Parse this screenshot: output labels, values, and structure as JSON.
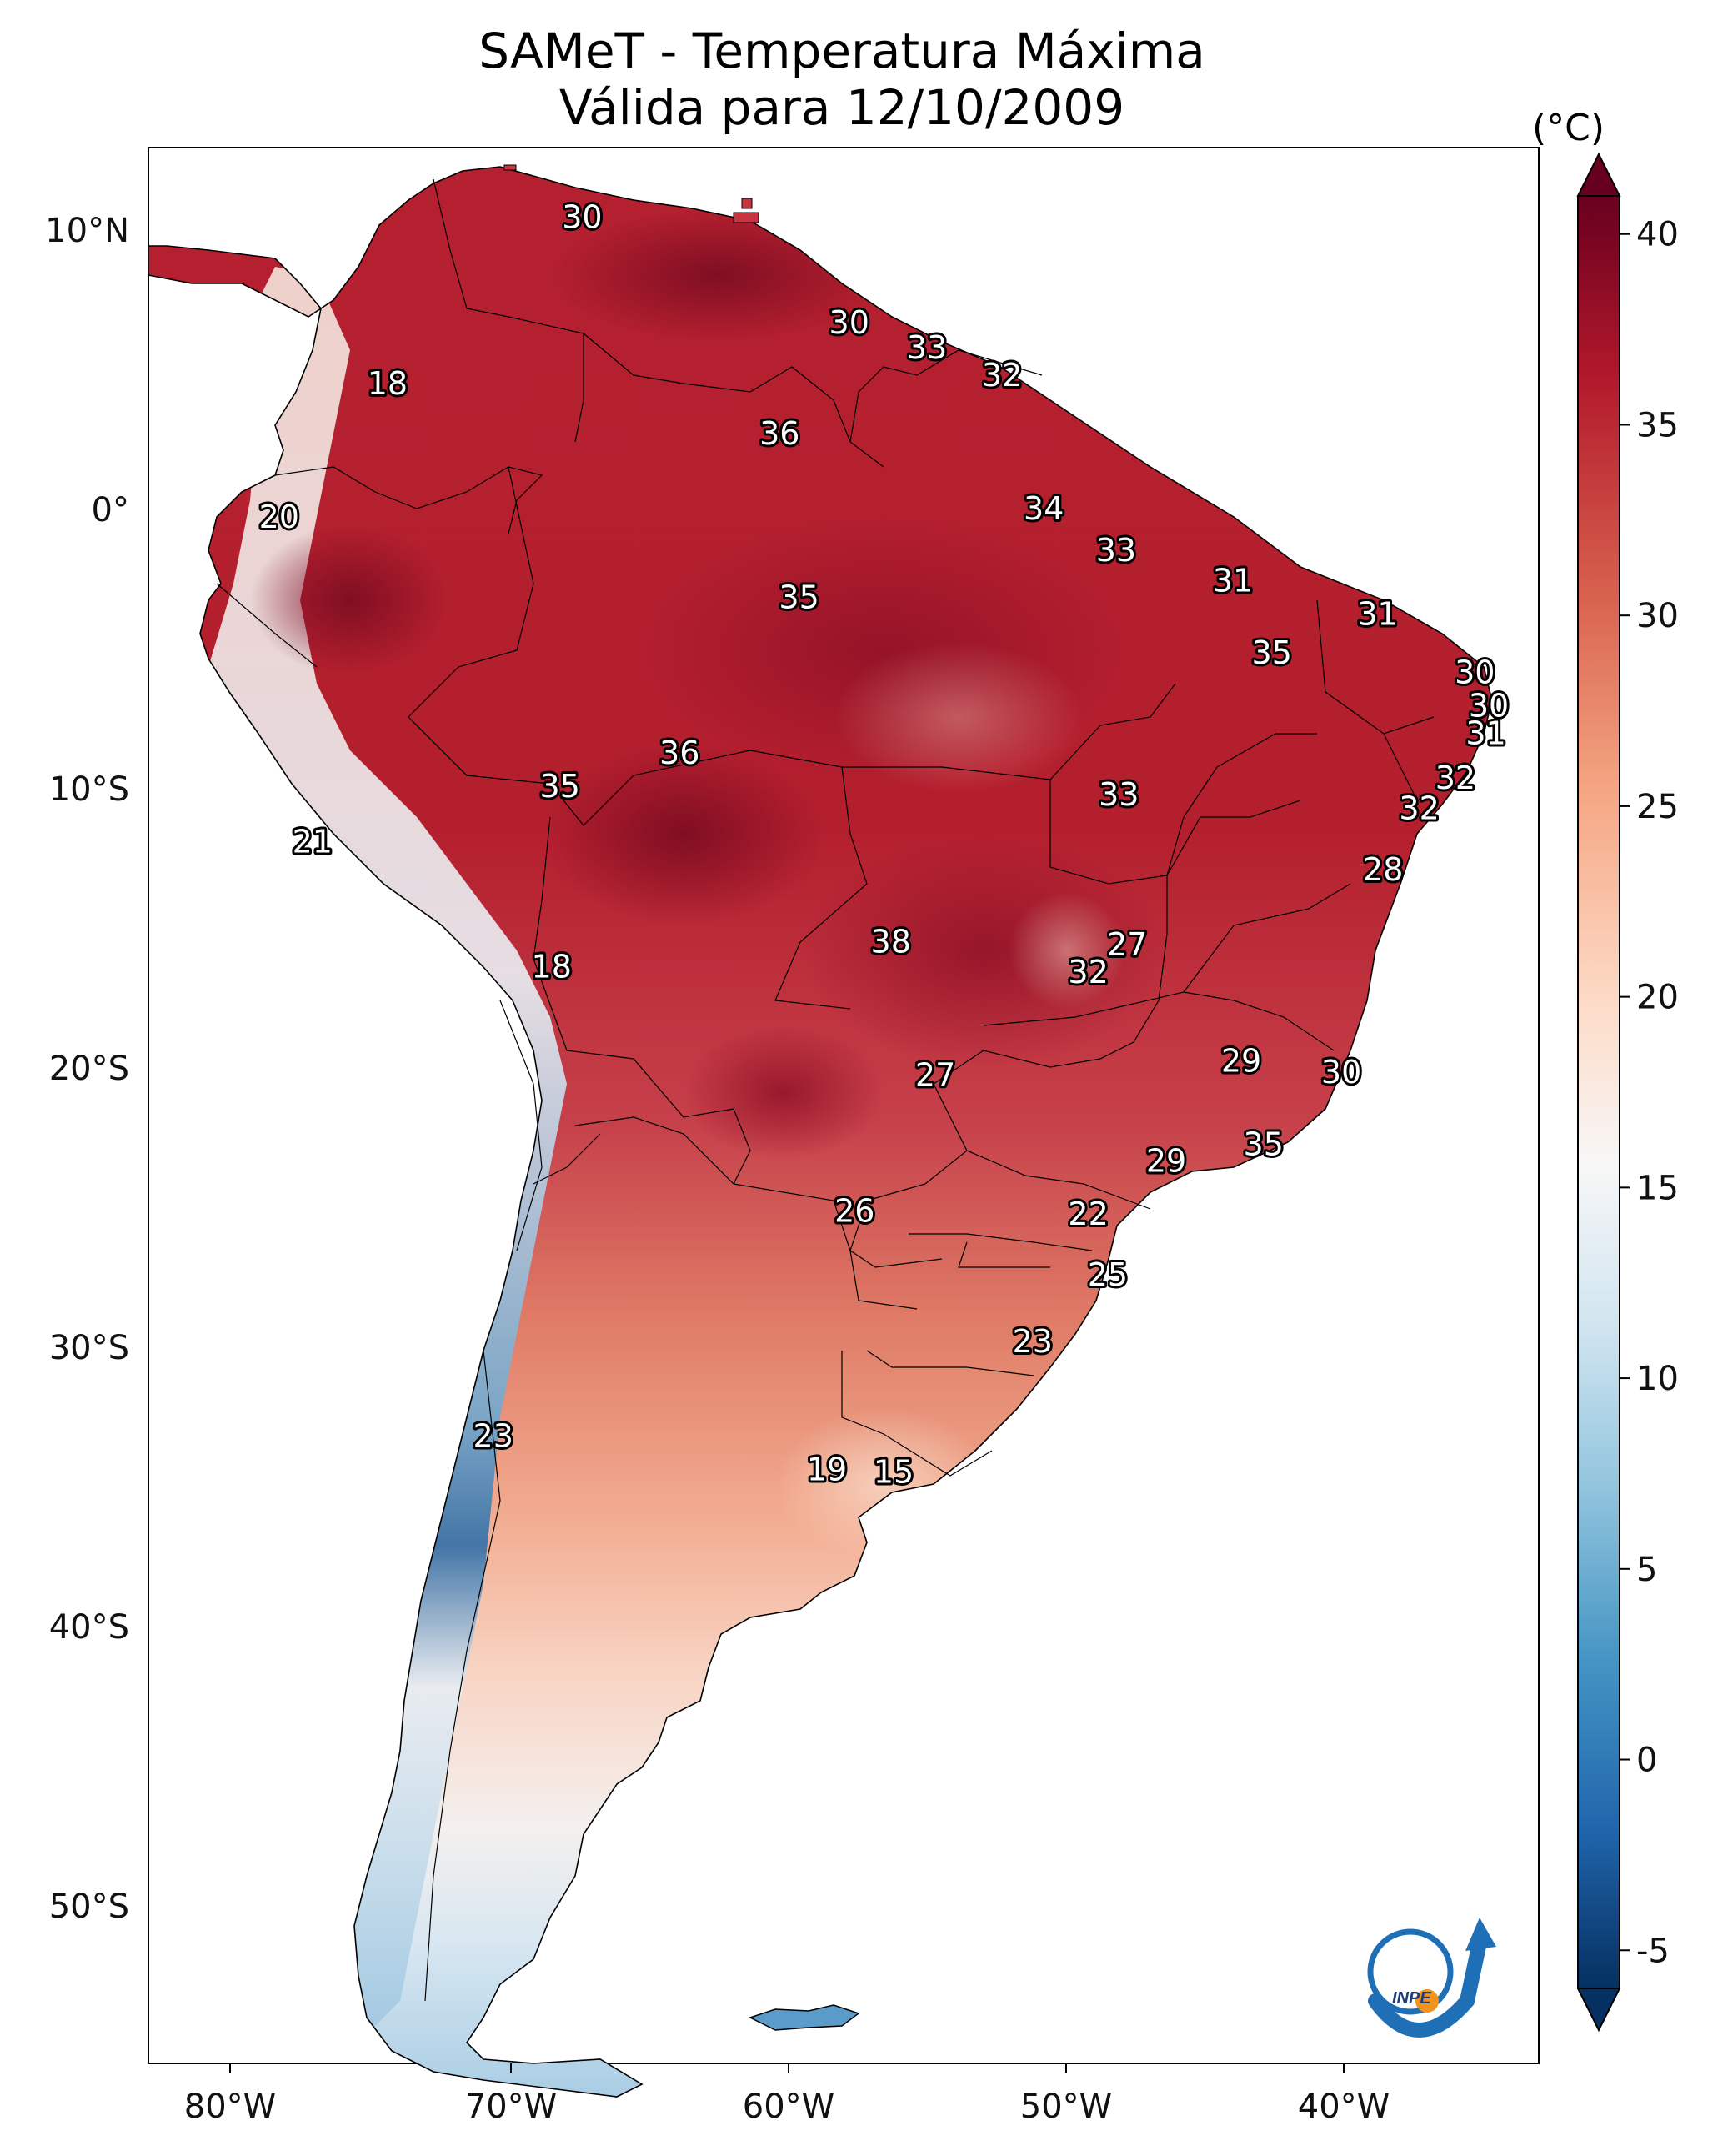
{
  "title": {
    "line1": "SAMeT - Temperatura Máxima",
    "line2": "Válida para 12/10/2009"
  },
  "axes": {
    "lon_labels": [
      "80°W",
      "70°W",
      "60°W",
      "50°W",
      "40°W"
    ],
    "lon_values": [
      -80,
      -70,
      -60,
      -50,
      -40
    ],
    "lat_labels": [
      "10°N",
      "0°",
      "10°S",
      "20°S",
      "30°S",
      "40°S",
      "50°S"
    ],
    "lat_values": [
      10,
      0,
      -10,
      -20,
      -30,
      -40,
      -50
    ],
    "lon_range": [
      -83,
      -33
    ],
    "lat_range": [
      -56,
      13
    ]
  },
  "colorbar": {
    "unit": "(°C)",
    "ticks": [
      "40",
      "35",
      "30",
      "25",
      "20",
      "15",
      "10",
      "5",
      "0",
      "-5"
    ],
    "tick_values": [
      40,
      35,
      30,
      25,
      20,
      15,
      10,
      5,
      0,
      -5
    ],
    "range": [
      -6,
      41
    ],
    "colors": [
      "#67001f",
      "#b2182b",
      "#d6604d",
      "#f4a582",
      "#fddbc7",
      "#f7f7f7",
      "#d1e5f0",
      "#92c5de",
      "#4393c3",
      "#2166ac",
      "#053061"
    ]
  },
  "station_labels": [
    {
      "text": "30",
      "lon": -67.4,
      "lat": 10.5
    },
    {
      "text": "30",
      "lon": -57.8,
      "lat": 6.7
    },
    {
      "text": "33",
      "lon": -55.0,
      "lat": 5.8
    },
    {
      "text": "32",
      "lon": -52.3,
      "lat": 4.8
    },
    {
      "text": "18",
      "lon": -74.4,
      "lat": 4.5
    },
    {
      "text": "36",
      "lon": -60.3,
      "lat": 2.7
    },
    {
      "text": "34",
      "lon": -50.8,
      "lat": 0.0
    },
    {
      "text": "20",
      "lon": -78.3,
      "lat": -0.3
    },
    {
      "text": "33",
      "lon": -48.2,
      "lat": -1.5
    },
    {
      "text": "31",
      "lon": -44.0,
      "lat": -2.6
    },
    {
      "text": "35",
      "lon": -59.6,
      "lat": -3.2
    },
    {
      "text": "31",
      "lon": -38.8,
      "lat": -3.8
    },
    {
      "text": "35",
      "lon": -42.6,
      "lat": -5.2
    },
    {
      "text": "30",
      "lon": -35.3,
      "lat": -5.9
    },
    {
      "text": "30",
      "lon": -34.8,
      "lat": -7.1
    },
    {
      "text": "31",
      "lon": -34.9,
      "lat": -8.1
    },
    {
      "text": "36",
      "lon": -63.9,
      "lat": -8.8
    },
    {
      "text": "32",
      "lon": -36.0,
      "lat": -9.7
    },
    {
      "text": "35",
      "lon": -68.2,
      "lat": -10.0
    },
    {
      "text": "33",
      "lon": -48.1,
      "lat": -10.3
    },
    {
      "text": "32",
      "lon": -37.3,
      "lat": -10.8
    },
    {
      "text": "21",
      "lon": -77.1,
      "lat": -12.0
    },
    {
      "text": "28",
      "lon": -38.6,
      "lat": -13.0
    },
    {
      "text": "38",
      "lon": -56.3,
      "lat": -15.6
    },
    {
      "text": "27",
      "lon": -47.8,
      "lat": -15.7
    },
    {
      "text": "32",
      "lon": -49.2,
      "lat": -16.7
    },
    {
      "text": "18",
      "lon": -68.5,
      "lat": -16.5
    },
    {
      "text": "29",
      "lon": -43.7,
      "lat": -19.9
    },
    {
      "text": "30",
      "lon": -40.1,
      "lat": -20.3
    },
    {
      "text": "27",
      "lon": -54.7,
      "lat": -20.4
    },
    {
      "text": "35",
      "lon": -42.9,
      "lat": -22.9
    },
    {
      "text": "29",
      "lon": -46.4,
      "lat": -23.5
    },
    {
      "text": "26",
      "lon": -57.6,
      "lat": -25.3
    },
    {
      "text": "22",
      "lon": -49.2,
      "lat": -25.4
    },
    {
      "text": "25",
      "lon": -48.5,
      "lat": -27.6
    },
    {
      "text": "23",
      "lon": -51.2,
      "lat": -30.0
    },
    {
      "text": "23",
      "lon": -70.6,
      "lat": -33.4
    },
    {
      "text": "19",
      "lon": -58.6,
      "lat": -34.6
    },
    {
      "text": "15",
      "lon": -56.2,
      "lat": -34.7
    }
  ],
  "logo": {
    "text": "INPE"
  }
}
